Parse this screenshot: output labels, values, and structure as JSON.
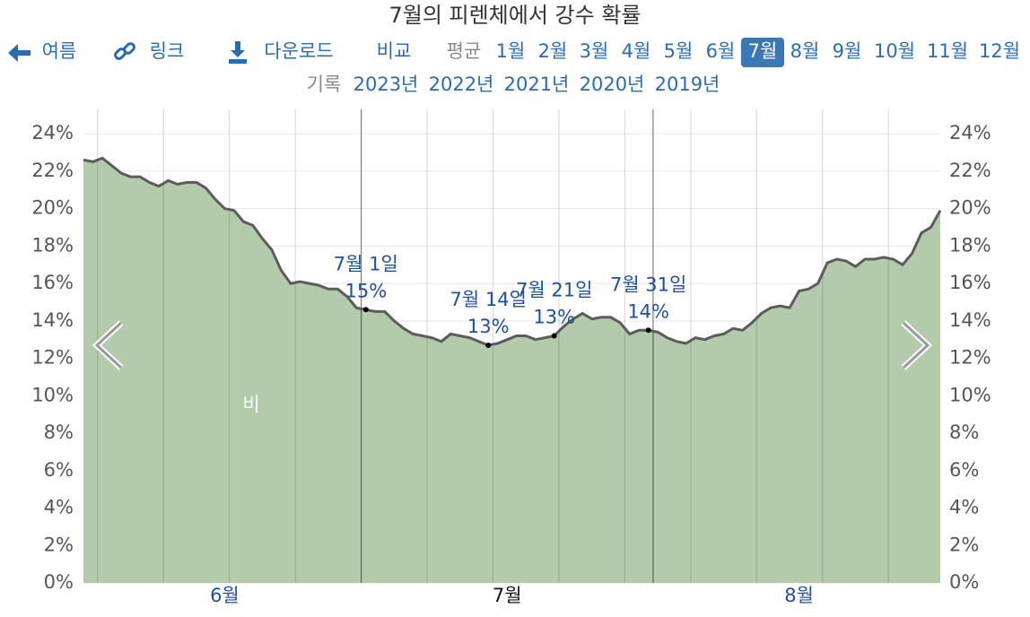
{
  "nav": {
    "back": "여름",
    "link": "링크",
    "download": "다운로드",
    "compare": "비교",
    "average": "평균",
    "months": [
      "1월",
      "2월",
      "3월",
      "4월",
      "5월",
      "6월",
      "7월",
      "8월",
      "9월",
      "10월",
      "11월",
      "12월"
    ],
    "selected": "7월",
    "records": "기록",
    "years": [
      "2023년",
      "2022년",
      "2021년",
      "2020년",
      "2019년"
    ]
  },
  "chart_data": {
    "type": "area",
    "title": "7월의 피렌체에서 강수 확률",
    "x": [
      152,
      153,
      154,
      155,
      156,
      157,
      158,
      159,
      160,
      161,
      162,
      163,
      164,
      165,
      166,
      167,
      168,
      169,
      170,
      171,
      172,
      173,
      174,
      175,
      176,
      177,
      178,
      179,
      180,
      181,
      182,
      183,
      184,
      185,
      186,
      187,
      188,
      189,
      190,
      191,
      192,
      193,
      194,
      195,
      196,
      197,
      198,
      199,
      200,
      201,
      202,
      203,
      204,
      205,
      206,
      207,
      208,
      209,
      210,
      211,
      212,
      213,
      214,
      215,
      216,
      217,
      218,
      219,
      220,
      221,
      222,
      223,
      224,
      225,
      226,
      227,
      228,
      229,
      230,
      231,
      232,
      233,
      234,
      235,
      236,
      237,
      238,
      239,
      240,
      241,
      242,
      243
    ],
    "series": [
      {
        "name": "비",
        "color": "#b3cbab",
        "line_color": "#5c5c5c",
        "values": [
          22.6,
          22.5,
          22.7,
          22.3,
          21.9,
          21.7,
          21.7,
          21.4,
          21.2,
          21.5,
          21.3,
          21.4,
          21.4,
          21.1,
          20.5,
          20.0,
          19.9,
          19.3,
          19.1,
          18.4,
          17.8,
          16.7,
          16.0,
          16.1,
          16.0,
          15.9,
          15.7,
          15.7,
          15.3,
          14.7,
          14.6,
          14.5,
          14.5,
          14.0,
          13.6,
          13.3,
          13.2,
          13.1,
          12.9,
          13.3,
          13.2,
          13.1,
          12.9,
          12.7,
          12.8,
          13.0,
          13.2,
          13.2,
          13.0,
          13.1,
          13.2,
          13.7,
          14.1,
          14.4,
          14.1,
          14.2,
          14.2,
          13.9,
          13.3,
          13.5,
          13.5,
          13.4,
          13.1,
          12.9,
          12.8,
          13.1,
          13.0,
          13.2,
          13.3,
          13.6,
          13.5,
          13.9,
          14.4,
          14.7,
          14.8,
          14.7,
          15.6,
          15.7,
          16.0,
          17.1,
          17.3,
          17.2,
          16.9,
          17.3,
          17.3,
          17.4,
          17.3,
          17.0,
          17.6,
          18.7,
          19.0,
          19.9
        ]
      }
    ],
    "annotations": [
      {
        "x": 182,
        "label": "7월 1일",
        "value_label": "15%"
      },
      {
        "x": 195,
        "label": "7월 14일",
        "value_label": "13%"
      },
      {
        "x": 202,
        "label": "7월 21일",
        "value_label": "13%"
      },
      {
        "x": 212,
        "label": "7월 31일",
        "value_label": "14%"
      }
    ],
    "xlim": [
      152,
      243
    ],
    "xticks": [
      {
        "value": 167,
        "label": "6월"
      },
      {
        "value": 197,
        "label": "7월"
      },
      {
        "value": 228,
        "label": "8월"
      }
    ],
    "x_gridlines": [
      153.5,
      160.5,
      167.5,
      174.5,
      188.5,
      195.5,
      202.5,
      209.5,
      216.5,
      223.5,
      230.5,
      237.5
    ],
    "month_boundaries": [
      181.5,
      212.5
    ],
    "ylim": [
      0,
      25.3
    ],
    "yticks": [
      {
        "value": 0,
        "label": "0%"
      },
      {
        "value": 2,
        "label": "2%"
      },
      {
        "value": 4,
        "label": "4%"
      },
      {
        "value": 6,
        "label": "6%"
      },
      {
        "value": 8,
        "label": "8%"
      },
      {
        "value": 10,
        "label": "10%"
      },
      {
        "value": 12,
        "label": "12%"
      },
      {
        "value": 14,
        "label": "14%"
      },
      {
        "value": 16,
        "label": "16%"
      },
      {
        "value": 18,
        "label": "18%"
      },
      {
        "value": 20,
        "label": "20%"
      },
      {
        "value": 22,
        "label": "22%"
      },
      {
        "value": 24,
        "label": "24%"
      }
    ],
    "grid": true
  }
}
